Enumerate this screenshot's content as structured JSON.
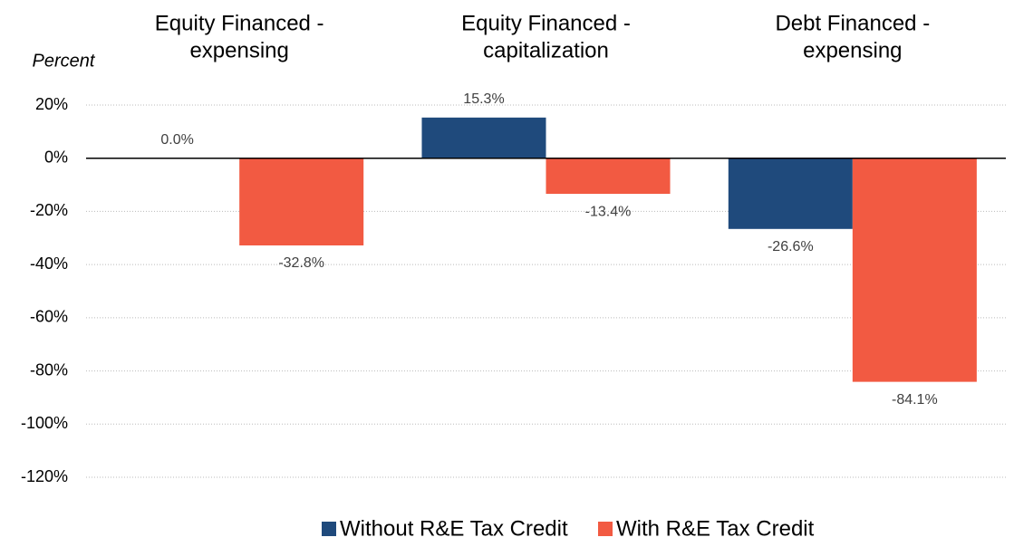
{
  "chart_data": {
    "type": "bar",
    "y_label": "Percent",
    "categories": [
      [
        "Equity Financed -",
        "expensing"
      ],
      [
        "Equity Financed -",
        "capitalization"
      ],
      [
        "Debt Financed -",
        "expensing"
      ]
    ],
    "series": [
      {
        "name": "Without R&E Tax Credit",
        "color": "#1f4a7c",
        "values": [
          0.0,
          15.3,
          -26.6
        ],
        "value_labels": [
          "0.0%",
          "15.3%",
          "-26.6%"
        ]
      },
      {
        "name": "With R&E Tax Credit",
        "color": "#f25a42",
        "values": [
          -32.8,
          -13.4,
          -84.1
        ],
        "value_labels": [
          "-32.8%",
          "-13.4%",
          "-84.1%"
        ]
      }
    ],
    "ylim": [
      -120,
      20
    ],
    "yticks": [
      {
        "value": 20,
        "label": "20%"
      },
      {
        "value": 0,
        "label": "0%"
      },
      {
        "value": -20,
        "label": "-20%"
      },
      {
        "value": -40,
        "label": "-40%"
      },
      {
        "value": -60,
        "label": "-60%"
      },
      {
        "value": -80,
        "label": "-80%"
      },
      {
        "value": -100,
        "label": "-100%"
      },
      {
        "value": -120,
        "label": "-120%"
      }
    ],
    "grid": true
  }
}
